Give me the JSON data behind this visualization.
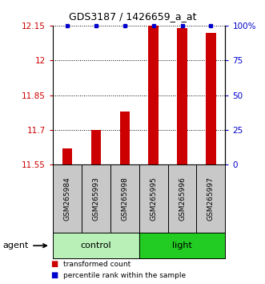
{
  "title": "GDS3187 / 1426659_a_at",
  "samples": [
    "GSM265984",
    "GSM265993",
    "GSM265998",
    "GSM265995",
    "GSM265996",
    "GSM265997"
  ],
  "groups": [
    "control",
    "control",
    "control",
    "light",
    "light",
    "light"
  ],
  "group_labels": [
    "control",
    "light"
  ],
  "group_colors": [
    "#b8f0b8",
    "#22cc22"
  ],
  "red_values": [
    11.62,
    11.7,
    11.78,
    12.15,
    12.14,
    12.12
  ],
  "blue_values": [
    100,
    100,
    100,
    100,
    100,
    100
  ],
  "ylim_left": [
    11.55,
    12.15
  ],
  "ylim_right": [
    0,
    100
  ],
  "yticks_left": [
    11.55,
    11.7,
    11.85,
    12.0,
    12.15
  ],
  "yticks_right": [
    0,
    25,
    50,
    75,
    100
  ],
  "ytick_labels_left": [
    "11.55",
    "11.7",
    "11.85",
    "12",
    "12.15"
  ],
  "ytick_labels_right": [
    "0",
    "25",
    "50",
    "75",
    "100%"
  ],
  "bar_width": 0.35,
  "red_color": "#cc0000",
  "blue_color": "#0000cc",
  "left_tick_color": "#cc0000",
  "right_tick_color": "#0000cc",
  "agent_label": "agent",
  "legend_red": "transformed count",
  "legend_blue": "percentile rank within the sample",
  "background_plot": "#ffffff",
  "sample_area_color": "#c8c8c8"
}
